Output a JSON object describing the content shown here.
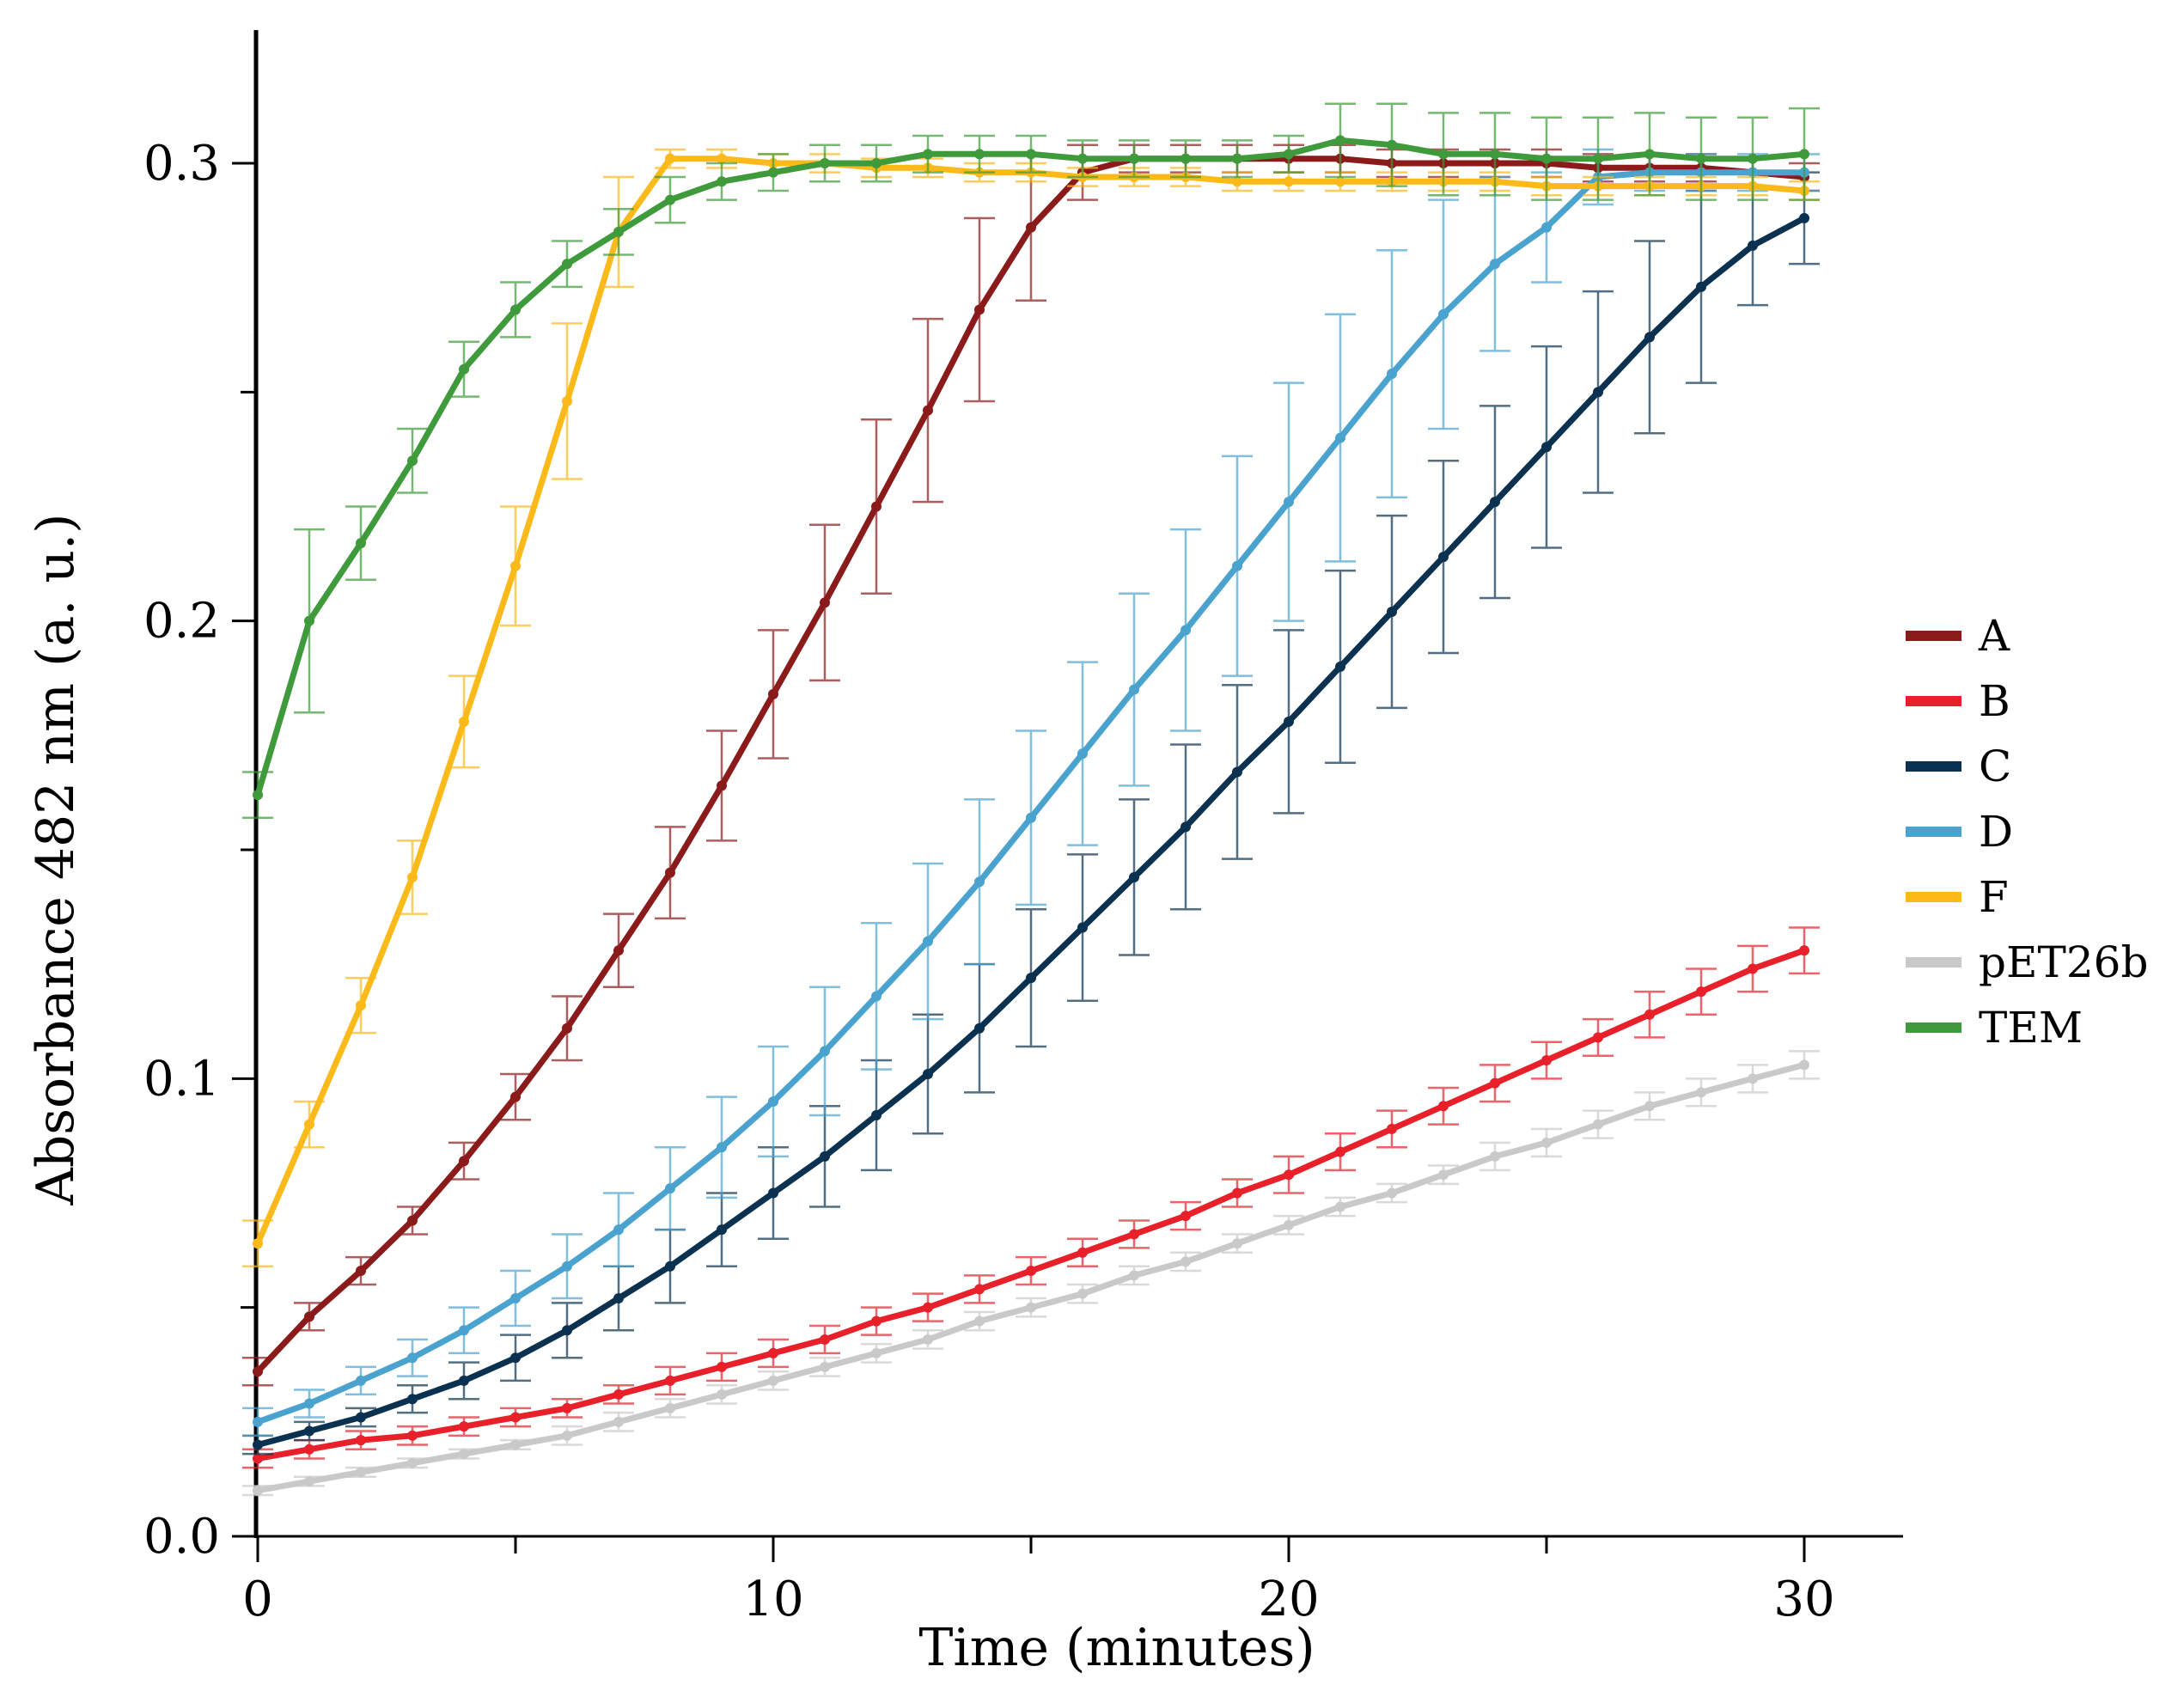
{
  "chart_data": {
    "type": "line",
    "xlabel": "Time (minutes)",
    "ylabel": "Absorbance 482 nm (a. u.)",
    "xlim": [
      0,
      32
    ],
    "ylim": [
      0,
      0.33
    ],
    "x_ticks": [
      0,
      10,
      20,
      30
    ],
    "x_tick_labels": [
      "0",
      "10",
      "20",
      "30"
    ],
    "x_minor_ticks": [
      5,
      15,
      25
    ],
    "y_ticks": [
      0,
      0.1,
      0.2,
      0.3
    ],
    "y_tick_labels": [
      "0.0",
      "0.1",
      "0.2",
      "0.3"
    ],
    "y_minor_ticks": [
      0.05,
      0.15,
      0.25
    ],
    "grid": false,
    "legend_position": "right",
    "x": [
      0,
      1,
      2,
      3,
      4,
      5,
      6,
      7,
      8,
      9,
      10,
      11,
      12,
      13,
      14,
      15,
      16,
      17,
      18,
      19,
      20,
      21,
      22,
      23,
      24,
      25,
      26,
      27,
      28,
      29,
      30
    ],
    "series": [
      {
        "name": "A",
        "color": "#8b1a1a",
        "values": [
          0.036,
          0.048,
          0.058,
          0.069,
          0.082,
          0.096,
          0.111,
          0.128,
          0.145,
          0.164,
          0.184,
          0.204,
          0.225,
          0.246,
          0.268,
          0.286,
          0.298,
          0.301,
          0.301,
          0.301,
          0.301,
          0.301,
          0.3,
          0.3,
          0.3,
          0.3,
          0.299,
          0.299,
          0.299,
          0.298,
          0.297
        ],
        "errors": [
          0.003,
          0.003,
          0.003,
          0.003,
          0.004,
          0.005,
          0.007,
          0.008,
          0.01,
          0.012,
          0.014,
          0.017,
          0.019,
          0.02,
          0.02,
          0.016,
          0.006,
          0.003,
          0.003,
          0.003,
          0.003,
          0.003,
          0.003,
          0.003,
          0.003,
          0.003,
          0.003,
          0.003,
          0.003,
          0.003,
          0.003
        ]
      },
      {
        "name": "B",
        "color": "#e8202a",
        "values": [
          0.017,
          0.019,
          0.021,
          0.022,
          0.024,
          0.026,
          0.028,
          0.031,
          0.034,
          0.037,
          0.04,
          0.043,
          0.047,
          0.05,
          0.054,
          0.058,
          0.062,
          0.066,
          0.07,
          0.075,
          0.079,
          0.084,
          0.089,
          0.094,
          0.099,
          0.104,
          0.109,
          0.114,
          0.119,
          0.124,
          0.128
        ],
        "errors": [
          0.002,
          0.002,
          0.002,
          0.002,
          0.002,
          0.002,
          0.002,
          0.002,
          0.003,
          0.003,
          0.003,
          0.003,
          0.003,
          0.003,
          0.003,
          0.003,
          0.003,
          0.003,
          0.003,
          0.003,
          0.004,
          0.004,
          0.004,
          0.004,
          0.004,
          0.004,
          0.004,
          0.005,
          0.005,
          0.005,
          0.005
        ]
      },
      {
        "name": "C",
        "color": "#0a3150",
        "values": [
          0.02,
          0.023,
          0.026,
          0.03,
          0.034,
          0.039,
          0.045,
          0.052,
          0.059,
          0.067,
          0.075,
          0.083,
          0.092,
          0.101,
          0.111,
          0.122,
          0.133,
          0.144,
          0.155,
          0.167,
          0.178,
          0.19,
          0.202,
          0.214,
          0.226,
          0.238,
          0.25,
          0.262,
          0.273,
          0.282,
          0.288
        ],
        "errors": [
          0.002,
          0.002,
          0.002,
          0.003,
          0.004,
          0.005,
          0.006,
          0.007,
          0.008,
          0.008,
          0.01,
          0.011,
          0.012,
          0.013,
          0.014,
          0.015,
          0.016,
          0.017,
          0.018,
          0.019,
          0.02,
          0.021,
          0.021,
          0.021,
          0.021,
          0.022,
          0.022,
          0.021,
          0.021,
          0.013,
          0.01
        ]
      },
      {
        "name": "D",
        "color": "#4aa3cf",
        "values": [
          0.025,
          0.029,
          0.034,
          0.039,
          0.045,
          0.052,
          0.059,
          0.067,
          0.076,
          0.085,
          0.095,
          0.106,
          0.118,
          0.13,
          0.143,
          0.157,
          0.171,
          0.185,
          0.198,
          0.212,
          0.226,
          0.24,
          0.254,
          0.267,
          0.278,
          0.286,
          0.297,
          0.298,
          0.298,
          0.298,
          0.298
        ],
        "errors": [
          0.003,
          0.003,
          0.003,
          0.004,
          0.005,
          0.006,
          0.007,
          0.008,
          0.009,
          0.011,
          0.012,
          0.014,
          0.016,
          0.017,
          0.018,
          0.019,
          0.02,
          0.021,
          0.022,
          0.024,
          0.026,
          0.027,
          0.027,
          0.025,
          0.019,
          0.012,
          0.006,
          0.004,
          0.004,
          0.004,
          0.004
        ]
      },
      {
        "name": "F",
        "color": "#fbb91a",
        "values": [
          0.064,
          0.09,
          0.116,
          0.144,
          0.178,
          0.212,
          0.248,
          0.285,
          0.301,
          0.301,
          0.3,
          0.3,
          0.299,
          0.299,
          0.298,
          0.298,
          0.297,
          0.297,
          0.297,
          0.296,
          0.296,
          0.296,
          0.296,
          0.296,
          0.296,
          0.295,
          0.295,
          0.295,
          0.295,
          0.295,
          0.294
        ],
        "errors": [
          0.005,
          0.005,
          0.006,
          0.008,
          0.01,
          0.013,
          0.017,
          0.012,
          0.002,
          0.002,
          0.002,
          0.002,
          0.002,
          0.002,
          0.002,
          0.002,
          0.002,
          0.002,
          0.002,
          0.002,
          0.002,
          0.002,
          0.002,
          0.002,
          0.002,
          0.002,
          0.002,
          0.002,
          0.002,
          0.002,
          0.002
        ]
      },
      {
        "name": "pET26b",
        "color": "#c9c9c9",
        "values": [
          0.01,
          0.012,
          0.014,
          0.016,
          0.018,
          0.02,
          0.022,
          0.025,
          0.028,
          0.031,
          0.034,
          0.037,
          0.04,
          0.043,
          0.047,
          0.05,
          0.053,
          0.057,
          0.06,
          0.064,
          0.068,
          0.072,
          0.075,
          0.079,
          0.083,
          0.086,
          0.09,
          0.094,
          0.097,
          0.1,
          0.103
        ],
        "errors": [
          0.001,
          0.001,
          0.001,
          0.001,
          0.001,
          0.001,
          0.002,
          0.002,
          0.002,
          0.002,
          0.002,
          0.002,
          0.002,
          0.002,
          0.002,
          0.002,
          0.002,
          0.002,
          0.002,
          0.002,
          0.002,
          0.002,
          0.002,
          0.002,
          0.003,
          0.003,
          0.003,
          0.003,
          0.003,
          0.003,
          0.003
        ]
      },
      {
        "name": "TEM",
        "color": "#3e9a3a",
        "values": [
          0.162,
          0.2,
          0.217,
          0.235,
          0.255,
          0.268,
          0.278,
          0.285,
          0.292,
          0.296,
          0.298,
          0.3,
          0.3,
          0.302,
          0.302,
          0.302,
          0.301,
          0.301,
          0.301,
          0.301,
          0.302,
          0.305,
          0.304,
          0.302,
          0.302,
          0.301,
          0.301,
          0.302,
          0.301,
          0.301,
          0.302
        ],
        "errors": [
          0.005,
          0.02,
          0.008,
          0.007,
          0.006,
          0.006,
          0.005,
          0.005,
          0.005,
          0.004,
          0.004,
          0.004,
          0.004,
          0.004,
          0.004,
          0.004,
          0.004,
          0.004,
          0.004,
          0.004,
          0.004,
          0.008,
          0.009,
          0.009,
          0.009,
          0.009,
          0.009,
          0.009,
          0.009,
          0.009,
          0.01
        ]
      }
    ]
  }
}
